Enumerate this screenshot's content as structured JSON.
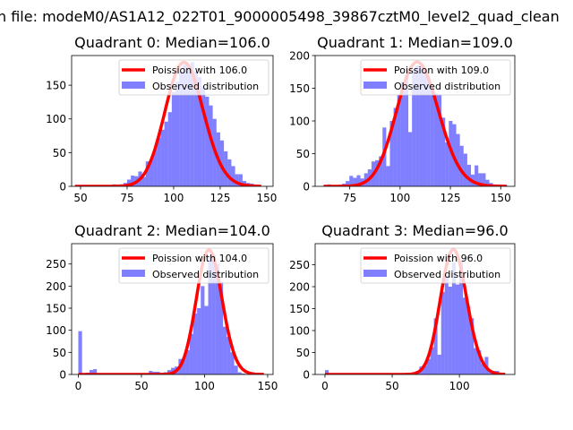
{
  "suptitle": "n file: modeM0/AS1A12_022T01_9000005498_39867cztM0_level2_quad_clean",
  "colors": {
    "bars": "#0000ff",
    "curve": "#ff0000"
  },
  "chart_data": [
    {
      "type": "bar",
      "title": "Quadrant 0: Median=106.0",
      "legend": {
        "curve": "Poission with 106.0",
        "bars": "Observed distribution",
        "placement": "top-right"
      },
      "lambda": 106.0,
      "curve_scale": 4750,
      "curve_range": [
        47,
        147
      ],
      "bin_start": 47,
      "bin_width": 2,
      "counts": [
        0,
        0,
        0,
        0,
        0,
        0,
        2,
        1,
        2,
        1,
        3,
        1,
        3,
        5,
        10,
        16,
        15,
        22,
        14,
        37,
        40,
        55,
        72,
        84,
        96,
        110,
        140,
        155,
        170,
        180,
        178,
        184,
        170,
        162,
        148,
        133,
        120,
        100,
        80,
        68,
        52,
        40,
        30,
        18,
        18,
        8,
        5,
        4,
        2,
        1
      ],
      "xlim": [
        45.2,
        153.4
      ],
      "ylim": [
        0,
        194
      ],
      "xticks": [
        50,
        75,
        100,
        125,
        150
      ],
      "yticks": [
        0,
        50,
        100,
        150
      ]
    },
    {
      "type": "bar",
      "title": "Quadrant 1: Median=109.0",
      "legend": {
        "curve": "Poission with 109.0",
        "bars": "Observed distribution",
        "placement": "top-right"
      },
      "lambda": 109.0,
      "curve_scale": 4975,
      "curve_range": [
        62,
        153
      ],
      "bin_start": 62,
      "bin_width": 1.83,
      "counts": [
        2,
        3,
        1,
        2,
        1,
        4,
        8,
        16,
        13,
        17,
        12,
        20,
        26,
        38,
        40,
        46,
        90,
        31,
        100,
        120,
        140,
        160,
        170,
        83,
        178,
        185,
        182,
        175,
        168,
        150,
        142,
        140,
        105,
        67,
        100,
        95,
        80,
        62,
        50,
        33,
        18,
        32,
        20,
        20,
        10,
        5,
        3,
        2,
        1,
        1
      ],
      "xlim": [
        57.8,
        157
      ],
      "ylim": [
        0,
        200
      ],
      "xticks": [
        75,
        100,
        125,
        150
      ],
      "yticks": [
        0,
        50,
        100,
        150,
        200
      ]
    },
    {
      "type": "bar",
      "title": "Quadrant 2: Median=104.0",
      "legend": {
        "curve": "Poission with 104.0",
        "bars": "Observed distribution",
        "placement": "top-right"
      },
      "lambda": 104.0,
      "curve_scale": 7210,
      "curve_range": [
        0,
        147
      ],
      "bin_start": 0,
      "bin_width": 2.94,
      "counts": [
        98,
        0,
        4,
        10,
        12,
        0,
        0,
        0,
        0,
        0,
        0,
        0,
        0,
        0,
        0,
        0,
        0,
        0,
        0,
        8,
        6,
        6,
        0,
        5,
        10,
        15,
        18,
        35,
        38,
        55,
        92,
        138,
        150,
        200,
        155,
        265,
        270,
        250,
        210,
        108,
        85,
        50,
        20,
        5,
        2,
        0,
        0,
        0,
        0,
        0
      ],
      "xlim": [
        -5.3,
        154.3
      ],
      "ylim": [
        0,
        296
      ],
      "xticks": [
        0,
        50,
        100,
        150
      ],
      "yticks": [
        0,
        50,
        100,
        150,
        200,
        250
      ]
    },
    {
      "type": "bar",
      "title": "Quadrant 3: Median=96.0",
      "legend": {
        "curve": "Poission with 96.0",
        "bars": "Observed distribution",
        "placement": "top-right"
      },
      "lambda": 96.0,
      "curve_scale": 7000,
      "curve_range": [
        0,
        134
      ],
      "bin_start": 0,
      "bin_width": 2.7,
      "counts": [
        10,
        0,
        0,
        3,
        0,
        0,
        0,
        0,
        0,
        0,
        0,
        0,
        0,
        0,
        0,
        0,
        0,
        0,
        0,
        0,
        0,
        3,
        3,
        4,
        5,
        8,
        18,
        20,
        35,
        62,
        128,
        45,
        188,
        225,
        200,
        255,
        205,
        260,
        175,
        155,
        128,
        60,
        55,
        25,
        40,
        8,
        8,
        8,
        0,
        0
      ],
      "xlim": [
        -7.3,
        141.2
      ],
      "ylim": [
        0,
        298
      ],
      "xticks": [
        0,
        50,
        100
      ],
      "yticks": [
        0,
        50,
        100,
        150,
        200,
        250
      ]
    }
  ]
}
